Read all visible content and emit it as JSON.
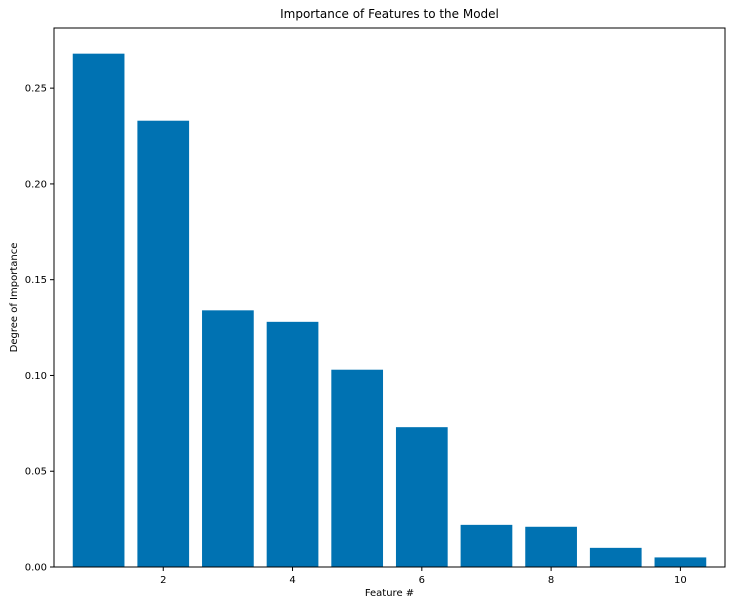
{
  "chart_data": {
    "type": "bar",
    "title": "Importance of Features to the Model",
    "xlabel": "Feature #",
    "ylabel": "Degree of Importance",
    "categories": [
      1,
      2,
      3,
      4,
      5,
      6,
      7,
      8,
      9,
      10
    ],
    "values": [
      0.268,
      0.233,
      0.134,
      0.128,
      0.103,
      0.073,
      0.022,
      0.021,
      0.01,
      0.005
    ],
    "xlim": [
      0.31,
      10.69
    ],
    "ylim": [
      0,
      0.2814
    ],
    "xticks": [
      2,
      4,
      6,
      8,
      10
    ],
    "xtick_labels": [
      "2",
      "4",
      "6",
      "8",
      "10"
    ],
    "yticks": [
      0,
      0.05,
      0.1,
      0.15,
      0.2,
      0.25
    ],
    "ytick_labels": [
      "0.00",
      "0.05",
      "0.10",
      "0.15",
      "0.20",
      "0.25"
    ],
    "bar_width": 0.8,
    "bar_color": "#0072b2",
    "grid": false
  }
}
